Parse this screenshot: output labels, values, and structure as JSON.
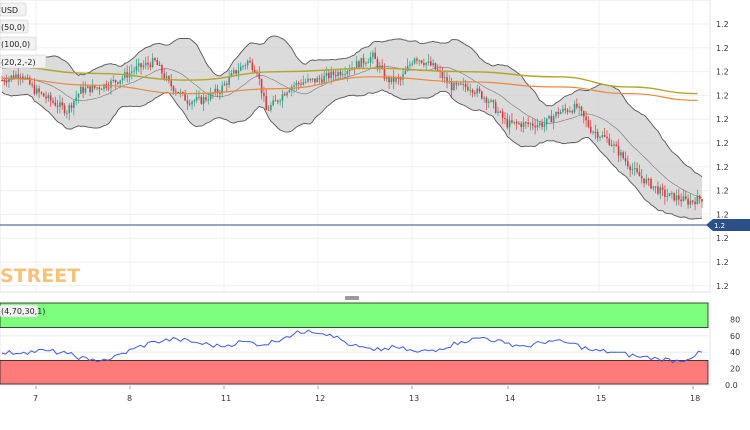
{
  "chart_data": [
    {
      "type": "candlestick",
      "title": "USD",
      "legend": [
        "50,0",
        "100,0",
        "20,2,-2"
      ],
      "x_ticks": [
        "7",
        "8",
        "11",
        "12",
        "13",
        "14",
        "15",
        "18"
      ],
      "price_ticks": [
        "1.2",
        "1.2",
        "1.2",
        "1.2",
        "1.2",
        "1.2",
        "1.2",
        "1.2",
        "1.2",
        "1.2",
        "1.2",
        "1.2"
      ],
      "current_price_label": "1.2",
      "watermark": "STREET",
      "colors": {
        "up": "#2e9e8a",
        "down": "#d83a3a",
        "sma50": "#e8893a",
        "sma100": "#b5a42a",
        "bands": "#555555",
        "bands_fill": "#cfcfcf",
        "current_line": "#2b4f86"
      },
      "candles": {
        "step": 0.26,
        "first": 12.2,
        "segments": [
          [
            0,
            12.2
          ],
          [
            8,
            12.6
          ],
          [
            14,
            11.6
          ],
          [
            22,
            10.9
          ],
          [
            28,
            10.4
          ],
          [
            34,
            11.6
          ],
          [
            42,
            11.8
          ],
          [
            50,
            12.2
          ],
          [
            58,
            12.9
          ],
          [
            66,
            13.3
          ],
          [
            72,
            12.0
          ],
          [
            80,
            11.0
          ],
          [
            86,
            11.0
          ],
          [
            94,
            11.6
          ],
          [
            100,
            12.6
          ],
          [
            106,
            13.3
          ],
          [
            110,
            12.8
          ],
          [
            114,
            10.4
          ],
          [
            118,
            10.9
          ],
          [
            124,
            11.8
          ],
          [
            130,
            12.1
          ],
          [
            136,
            12.2
          ],
          [
            142,
            12.5
          ],
          [
            148,
            12.8
          ],
          [
            154,
            13.2
          ],
          [
            160,
            13.6
          ],
          [
            166,
            12.2
          ],
          [
            172,
            12.2
          ],
          [
            178,
            13.6
          ],
          [
            186,
            13.0
          ],
          [
            194,
            11.8
          ],
          [
            202,
            11.8
          ],
          [
            210,
            11.0
          ],
          [
            218,
            9.6
          ],
          [
            226,
            9.6
          ],
          [
            234,
            9.6
          ],
          [
            240,
            10.3
          ],
          [
            248,
            10.6
          ],
          [
            254,
            9.3
          ],
          [
            262,
            8.6
          ],
          [
            268,
            7.6
          ],
          [
            274,
            6.6
          ],
          [
            280,
            6.0
          ],
          [
            286,
            5.4
          ],
          [
            292,
            5.2
          ],
          [
            296,
            5.0
          ],
          [
            302,
            5.2
          ]
        ]
      },
      "sma50": [
        [
          0,
          12.3
        ],
        [
          40,
          11.9
        ],
        [
          80,
          11.4
        ],
        [
          120,
          11.7
        ],
        [
          160,
          12.4
        ],
        [
          200,
          12.1
        ],
        [
          240,
          11.8
        ],
        [
          270,
          11.4
        ],
        [
          300,
          11.0
        ]
      ],
      "sma100": [
        [
          0,
          13.0
        ],
        [
          40,
          12.6
        ],
        [
          80,
          12.2
        ],
        [
          120,
          12.7
        ],
        [
          160,
          12.9
        ],
        [
          200,
          12.7
        ],
        [
          240,
          12.4
        ],
        [
          270,
          11.8
        ],
        [
          300,
          11.4
        ]
      ]
    },
    {
      "type": "line",
      "legend": "4,70,30,1",
      "y_ticks": [
        "80",
        "60",
        "40",
        "20",
        "0.0"
      ],
      "ylim": [
        0,
        100
      ],
      "upper_zone": 70,
      "lower_zone": 30,
      "colors": {
        "line": "#3a5bd9",
        "upper_zone": "#7dff7d",
        "lower_zone": "#ff7b7b"
      },
      "x": [
        0,
        10,
        20,
        30,
        40,
        50,
        60,
        70,
        80,
        90,
        100,
        110,
        120,
        130,
        140,
        150,
        160,
        170,
        180,
        190,
        200,
        210,
        220,
        230,
        240,
        250,
        260,
        270,
        280,
        290,
        300,
        310,
        320
      ],
      "values": [
        39,
        40,
        42,
        38,
        30,
        32,
        44,
        53,
        56,
        51,
        47,
        53,
        49,
        59,
        67,
        62,
        48,
        42,
        46,
        40,
        44,
        53,
        58,
        51,
        47,
        54,
        51,
        42,
        40,
        35,
        32,
        29,
        40
      ]
    }
  ]
}
